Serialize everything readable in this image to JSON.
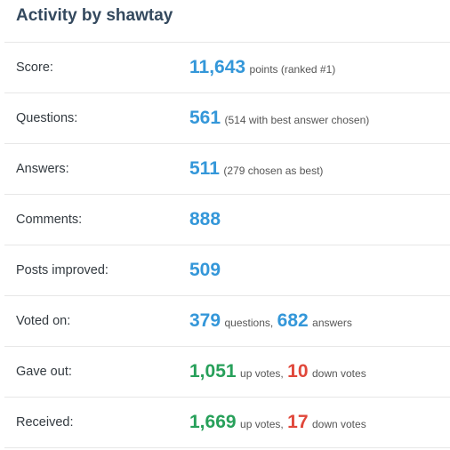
{
  "title": "Activity by shawtay",
  "colors": {
    "title": "#34495e",
    "blue": "#3497d9",
    "green": "#27a05a",
    "red": "#e0473a",
    "divider": "#e7e7e7"
  },
  "rows": {
    "score": {
      "label": "Score:",
      "value": "11,643",
      "detail": "points (ranked #1)"
    },
    "questions": {
      "label": "Questions:",
      "value": "561",
      "detail": "(514 with best answer chosen)"
    },
    "answers": {
      "label": "Answers:",
      "value": "511",
      "detail": "(279 chosen as best)"
    },
    "comments": {
      "label": "Comments:",
      "value": "888"
    },
    "posts_improved": {
      "label": "Posts improved:",
      "value": "509"
    },
    "voted_on": {
      "label": "Voted on:",
      "questions_value": "379",
      "questions_text": "questions,",
      "answers_value": "682",
      "answers_text": "answers"
    },
    "gave_out": {
      "label": "Gave out:",
      "up_value": "1,051",
      "up_text": "up votes,",
      "down_value": "10",
      "down_text": "down votes"
    },
    "received": {
      "label": "Received:",
      "up_value": "1,669",
      "up_text": "up votes,",
      "down_value": "17",
      "down_text": "down votes"
    }
  }
}
